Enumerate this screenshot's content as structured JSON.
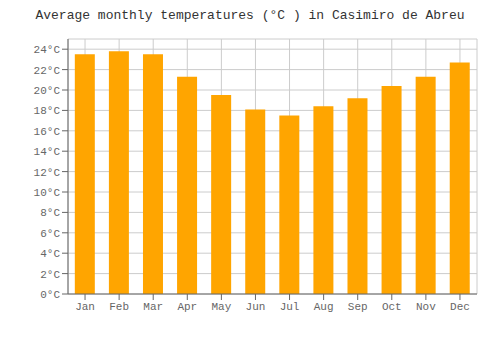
{
  "chart_data": {
    "type": "bar",
    "title": "Average monthly temperatures (°C ) in Casimiro de Abreu",
    "categories": [
      "Jan",
      "Feb",
      "Mar",
      "Apr",
      "May",
      "Jun",
      "Jul",
      "Aug",
      "Sep",
      "Oct",
      "Nov",
      "Dec"
    ],
    "values": [
      23.5,
      23.8,
      23.5,
      21.3,
      19.5,
      18.1,
      17.5,
      18.4,
      19.2,
      20.4,
      21.3,
      22.7
    ],
    "color": "#FFA500",
    "ylim": [
      0,
      25
    ],
    "yticks": [
      {
        "value": 0,
        "label": "0°C"
      },
      {
        "value": 2,
        "label": "2°C"
      },
      {
        "value": 4,
        "label": "4°C"
      },
      {
        "value": 6,
        "label": "6°C"
      },
      {
        "value": 8,
        "label": "8°C"
      },
      {
        "value": 10,
        "label": "10°C"
      },
      {
        "value": 12,
        "label": "12°C"
      },
      {
        "value": 14,
        "label": "14°C"
      },
      {
        "value": 16,
        "label": "16°C"
      },
      {
        "value": 18,
        "label": "18°C"
      },
      {
        "value": 20,
        "label": "20°C"
      },
      {
        "value": 22,
        "label": "22°C"
      },
      {
        "value": 24,
        "label": "24°C"
      }
    ],
    "grid": true
  }
}
